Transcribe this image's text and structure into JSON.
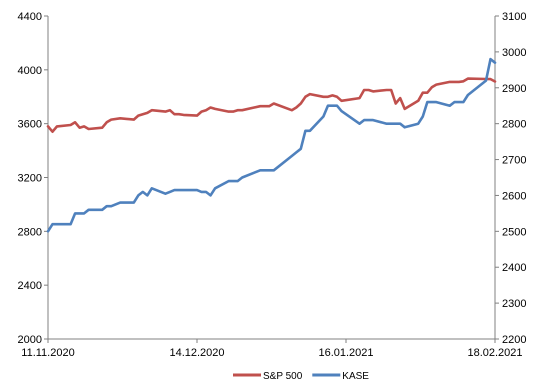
{
  "chart_data": {
    "type": "line",
    "title": "",
    "grid": "none",
    "legend_position": "bottom-center",
    "x": {
      "start": "11.11.2020",
      "end": "18.02.2021",
      "tick_labels": [
        "11.11.2020",
        "14.12.2020",
        "16.01.2021",
        "18.02.2021"
      ]
    },
    "y_left": {
      "min": 2000,
      "max": 4400,
      "ticks": [
        2000,
        2400,
        2800,
        3200,
        3600,
        4000,
        4400
      ]
    },
    "y_right": {
      "min": 2200,
      "max": 3100,
      "ticks": [
        2200,
        2300,
        2400,
        2500,
        2600,
        2700,
        2800,
        2900,
        3000,
        3100
      ]
    },
    "series": [
      {
        "name": "S&P 500",
        "axis": "left",
        "color": "#c0504d",
        "values": [
          [
            "11.11.2020",
            3580
          ],
          [
            "12.11.2020",
            3540
          ],
          [
            "13.11.2020",
            3580
          ],
          [
            "16.11.2020",
            3590
          ],
          [
            "17.11.2020",
            3610
          ],
          [
            "18.11.2020",
            3570
          ],
          [
            "19.11.2020",
            3580
          ],
          [
            "20.11.2020",
            3560
          ],
          [
            "23.11.2020",
            3570
          ],
          [
            "24.11.2020",
            3610
          ],
          [
            "25.11.2020",
            3630
          ],
          [
            "27.11.2020",
            3640
          ],
          [
            "30.11.2020",
            3630
          ],
          [
            "01.12.2020",
            3660
          ],
          [
            "02.12.2020",
            3670
          ],
          [
            "03.12.2020",
            3680
          ],
          [
            "04.12.2020",
            3700
          ],
          [
            "07.12.2020",
            3690
          ],
          [
            "08.12.2020",
            3700
          ],
          [
            "09.12.2020",
            3670
          ],
          [
            "10.12.2020",
            3670
          ],
          [
            "11.12.2020",
            3665
          ],
          [
            "14.12.2020",
            3660
          ],
          [
            "15.12.2020",
            3690
          ],
          [
            "16.12.2020",
            3700
          ],
          [
            "17.12.2020",
            3720
          ],
          [
            "18.12.2020",
            3710
          ],
          [
            "21.12.2020",
            3690
          ],
          [
            "22.12.2020",
            3690
          ],
          [
            "23.12.2020",
            3700
          ],
          [
            "24.12.2020",
            3700
          ],
          [
            "28.12.2020",
            3730
          ],
          [
            "29.12.2020",
            3730
          ],
          [
            "30.12.2020",
            3730
          ],
          [
            "31.12.2020",
            3750
          ],
          [
            "04.01.2021",
            3700
          ],
          [
            "05.01.2021",
            3720
          ],
          [
            "06.01.2021",
            3750
          ],
          [
            "07.01.2021",
            3800
          ],
          [
            "08.01.2021",
            3820
          ],
          [
            "11.01.2021",
            3800
          ],
          [
            "12.01.2021",
            3800
          ],
          [
            "13.01.2021",
            3810
          ],
          [
            "14.01.2021",
            3800
          ],
          [
            "15.01.2021",
            3770
          ],
          [
            "19.01.2021",
            3790
          ],
          [
            "20.01.2021",
            3850
          ],
          [
            "21.01.2021",
            3850
          ],
          [
            "22.01.2021",
            3840
          ],
          [
            "25.01.2021",
            3850
          ],
          [
            "26.01.2021",
            3850
          ],
          [
            "27.01.2021",
            3750
          ],
          [
            "28.01.2021",
            3790
          ],
          [
            "29.01.2021",
            3710
          ],
          [
            "01.02.2021",
            3770
          ],
          [
            "02.02.2021",
            3830
          ],
          [
            "03.02.2021",
            3830
          ],
          [
            "04.02.2021",
            3870
          ],
          [
            "05.02.2021",
            3890
          ],
          [
            "08.02.2021",
            3910
          ],
          [
            "09.02.2021",
            3910
          ],
          [
            "10.02.2021",
            3910
          ],
          [
            "11.02.2021",
            3915
          ],
          [
            "12.02.2021",
            3935
          ],
          [
            "16.02.2021",
            3932
          ],
          [
            "17.02.2021",
            3931
          ],
          [
            "18.02.2021",
            3913
          ]
        ]
      },
      {
        "name": "KASE",
        "axis": "right",
        "color": "#4f81bd",
        "values": [
          [
            "11.11.2020",
            2500
          ],
          [
            "12.11.2020",
            2520
          ],
          [
            "13.11.2020",
            2520
          ],
          [
            "16.11.2020",
            2520
          ],
          [
            "17.11.2020",
            2550
          ],
          [
            "18.11.2020",
            2550
          ],
          [
            "19.11.2020",
            2550
          ],
          [
            "20.11.2020",
            2560
          ],
          [
            "23.11.2020",
            2560
          ],
          [
            "24.11.2020",
            2570
          ],
          [
            "25.11.2020",
            2570
          ],
          [
            "27.11.2020",
            2580
          ],
          [
            "30.11.2020",
            2580
          ],
          [
            "01.12.2020",
            2600
          ],
          [
            "02.12.2020",
            2610
          ],
          [
            "03.12.2020",
            2600
          ],
          [
            "04.12.2020",
            2620
          ],
          [
            "07.12.2020",
            2605
          ],
          [
            "08.12.2020",
            2610
          ],
          [
            "09.12.2020",
            2615
          ],
          [
            "10.12.2020",
            2615
          ],
          [
            "11.12.2020",
            2615
          ],
          [
            "14.12.2020",
            2615
          ],
          [
            "15.12.2020",
            2610
          ],
          [
            "16.12.2020",
            2610
          ],
          [
            "17.12.2020",
            2600
          ],
          [
            "18.12.2020",
            2620
          ],
          [
            "21.12.2020",
            2640
          ],
          [
            "22.12.2020",
            2640
          ],
          [
            "23.12.2020",
            2640
          ],
          [
            "24.12.2020",
            2650
          ],
          [
            "28.12.2020",
            2670
          ],
          [
            "29.12.2020",
            2670
          ],
          [
            "30.12.2020",
            2670
          ],
          [
            "31.12.2020",
            2670
          ],
          [
            "04.01.2021",
            2710
          ],
          [
            "05.01.2021",
            2720
          ],
          [
            "06.01.2021",
            2730
          ],
          [
            "07.01.2021",
            2780
          ],
          [
            "08.01.2021",
            2780
          ],
          [
            "11.01.2021",
            2820
          ],
          [
            "12.01.2021",
            2850
          ],
          [
            "13.01.2021",
            2850
          ],
          [
            "14.01.2021",
            2850
          ],
          [
            "15.01.2021",
            2835
          ],
          [
            "19.01.2021",
            2800
          ],
          [
            "20.01.2021",
            2810
          ],
          [
            "21.01.2021",
            2810
          ],
          [
            "22.01.2021",
            2810
          ],
          [
            "25.01.2021",
            2800
          ],
          [
            "26.01.2021",
            2800
          ],
          [
            "27.01.2021",
            2800
          ],
          [
            "28.01.2021",
            2800
          ],
          [
            "29.01.2021",
            2790
          ],
          [
            "01.02.2021",
            2800
          ],
          [
            "02.02.2021",
            2820
          ],
          [
            "03.02.2021",
            2860
          ],
          [
            "04.02.2021",
            2860
          ],
          [
            "05.02.2021",
            2860
          ],
          [
            "08.02.2021",
            2850
          ],
          [
            "09.02.2021",
            2860
          ],
          [
            "10.02.2021",
            2860
          ],
          [
            "11.02.2021",
            2860
          ],
          [
            "12.02.2021",
            2880
          ],
          [
            "16.02.2021",
            2920
          ],
          [
            "17.02.2021",
            2980
          ],
          [
            "18.02.2021",
            2970
          ]
        ]
      }
    ]
  }
}
